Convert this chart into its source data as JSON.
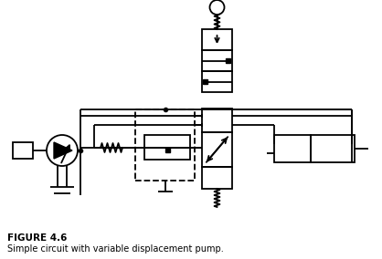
{
  "title": "FIGURE 4.6",
  "subtitle": "Simple circuit with variable displacement pump.",
  "bg_color": "#ffffff",
  "line_color": "#000000",
  "lw": 1.3,
  "fig_width": 4.18,
  "fig_height": 2.84,
  "dpi": 100
}
